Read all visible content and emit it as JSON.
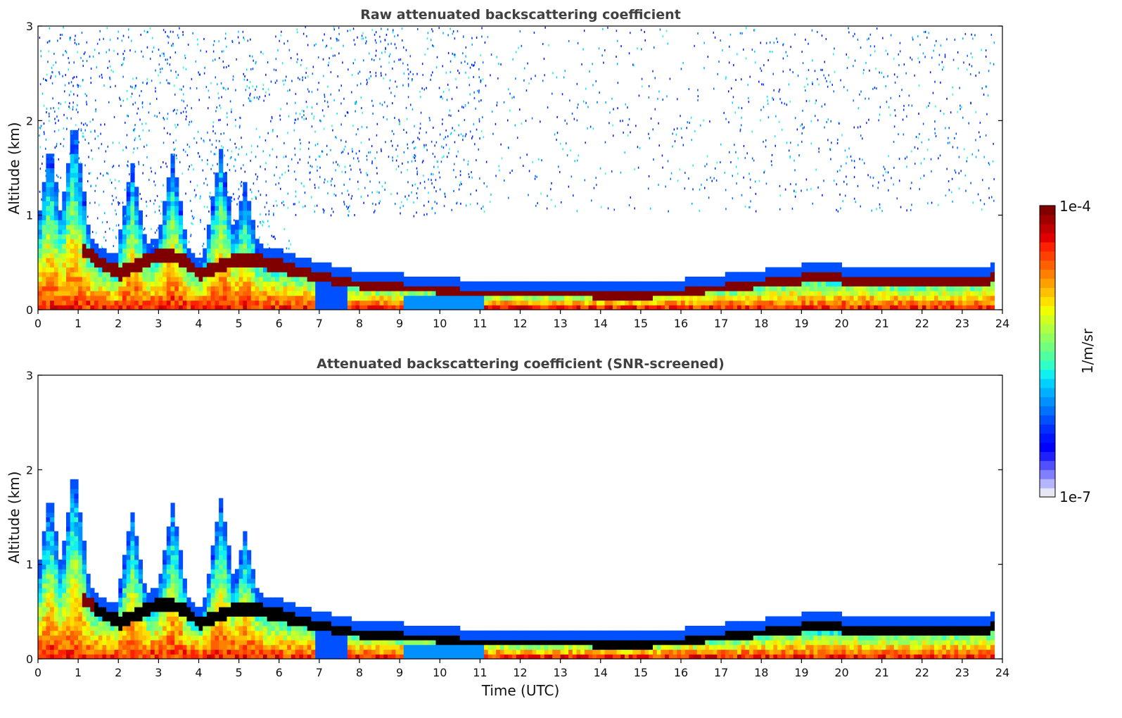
{
  "chart_data": [
    {
      "type": "heatmap",
      "title": "Raw attenuated backscattering coefficient",
      "xlabel": "",
      "ylabel": "Altitude (km)",
      "xlim": [
        0,
        24
      ],
      "ylim": [
        0,
        3
      ],
      "xticks": [
        "0",
        "1",
        "2",
        "3",
        "4",
        "5",
        "6",
        "7",
        "8",
        "9",
        "10",
        "11",
        "12",
        "13",
        "14",
        "15",
        "16",
        "17",
        "18",
        "19",
        "20",
        "21",
        "22",
        "23",
        "24"
      ],
      "yticks": [
        "0",
        "1",
        "2",
        "3"
      ],
      "layer_top_km": [
        {
          "t": 0,
          "h": 0.8
        },
        {
          "t": 1,
          "h": 0.8
        },
        {
          "t": 1.5,
          "h": 0.6
        },
        {
          "t": 2,
          "h": 0.45
        },
        {
          "t": 3,
          "h": 0.7
        },
        {
          "t": 3.5,
          "h": 0.65
        },
        {
          "t": 4,
          "h": 0.45
        },
        {
          "t": 5,
          "h": 0.65
        },
        {
          "t": 6,
          "h": 0.55
        },
        {
          "t": 7,
          "h": 0.42
        },
        {
          "t": 8,
          "h": 0.33
        },
        {
          "t": 10,
          "h": 0.27
        },
        {
          "t": 11,
          "h": 0.22
        },
        {
          "t": 13,
          "h": 0.22
        },
        {
          "t": 15,
          "h": 0.2
        },
        {
          "t": 17,
          "h": 0.3
        },
        {
          "t": 19,
          "h": 0.4
        },
        {
          "t": 20,
          "h": 0.4
        },
        {
          "t": 22,
          "h": 0.35
        },
        {
          "t": 23.7,
          "h": 0.4
        }
      ],
      "noise_above": true
    },
    {
      "type": "heatmap",
      "title": "Attenuated backscattering coefficient (SNR-screened)",
      "xlabel": "Time (UTC)",
      "ylabel": "Altitude (km)",
      "xlim": [
        0,
        24
      ],
      "ylim": [
        0,
        3
      ],
      "xticks": [
        "0",
        "1",
        "2",
        "3",
        "4",
        "5",
        "6",
        "7",
        "8",
        "9",
        "10",
        "11",
        "12",
        "13",
        "14",
        "15",
        "16",
        "17",
        "18",
        "19",
        "20",
        "21",
        "22",
        "23",
        "24"
      ],
      "yticks": [
        "0",
        "1",
        "2",
        "3"
      ],
      "noise_above": false
    }
  ],
  "colorbar": {
    "label": "1/m/sr",
    "max_label": "1e-4",
    "min_label": "1e-7",
    "colors": [
      "#e6e6f5",
      "#b4b4ff",
      "#8080ff",
      "#5050ff",
      "#2020ff",
      "#0000ff",
      "#0014ff",
      "#0030ff",
      "#0050ff",
      "#0070ff",
      "#0090ff",
      "#00b0ff",
      "#00d0ff",
      "#10f0f0",
      "#30ffc8",
      "#50ffa0",
      "#70ff80",
      "#90ff60",
      "#b0ff40",
      "#d0ff20",
      "#f0ff00",
      "#ffe000",
      "#ffc000",
      "#ffa000",
      "#ff8000",
      "#ff6000",
      "#ff4000",
      "#ff2000",
      "#e00000",
      "#c00000",
      "#a00000",
      "#800000"
    ]
  }
}
